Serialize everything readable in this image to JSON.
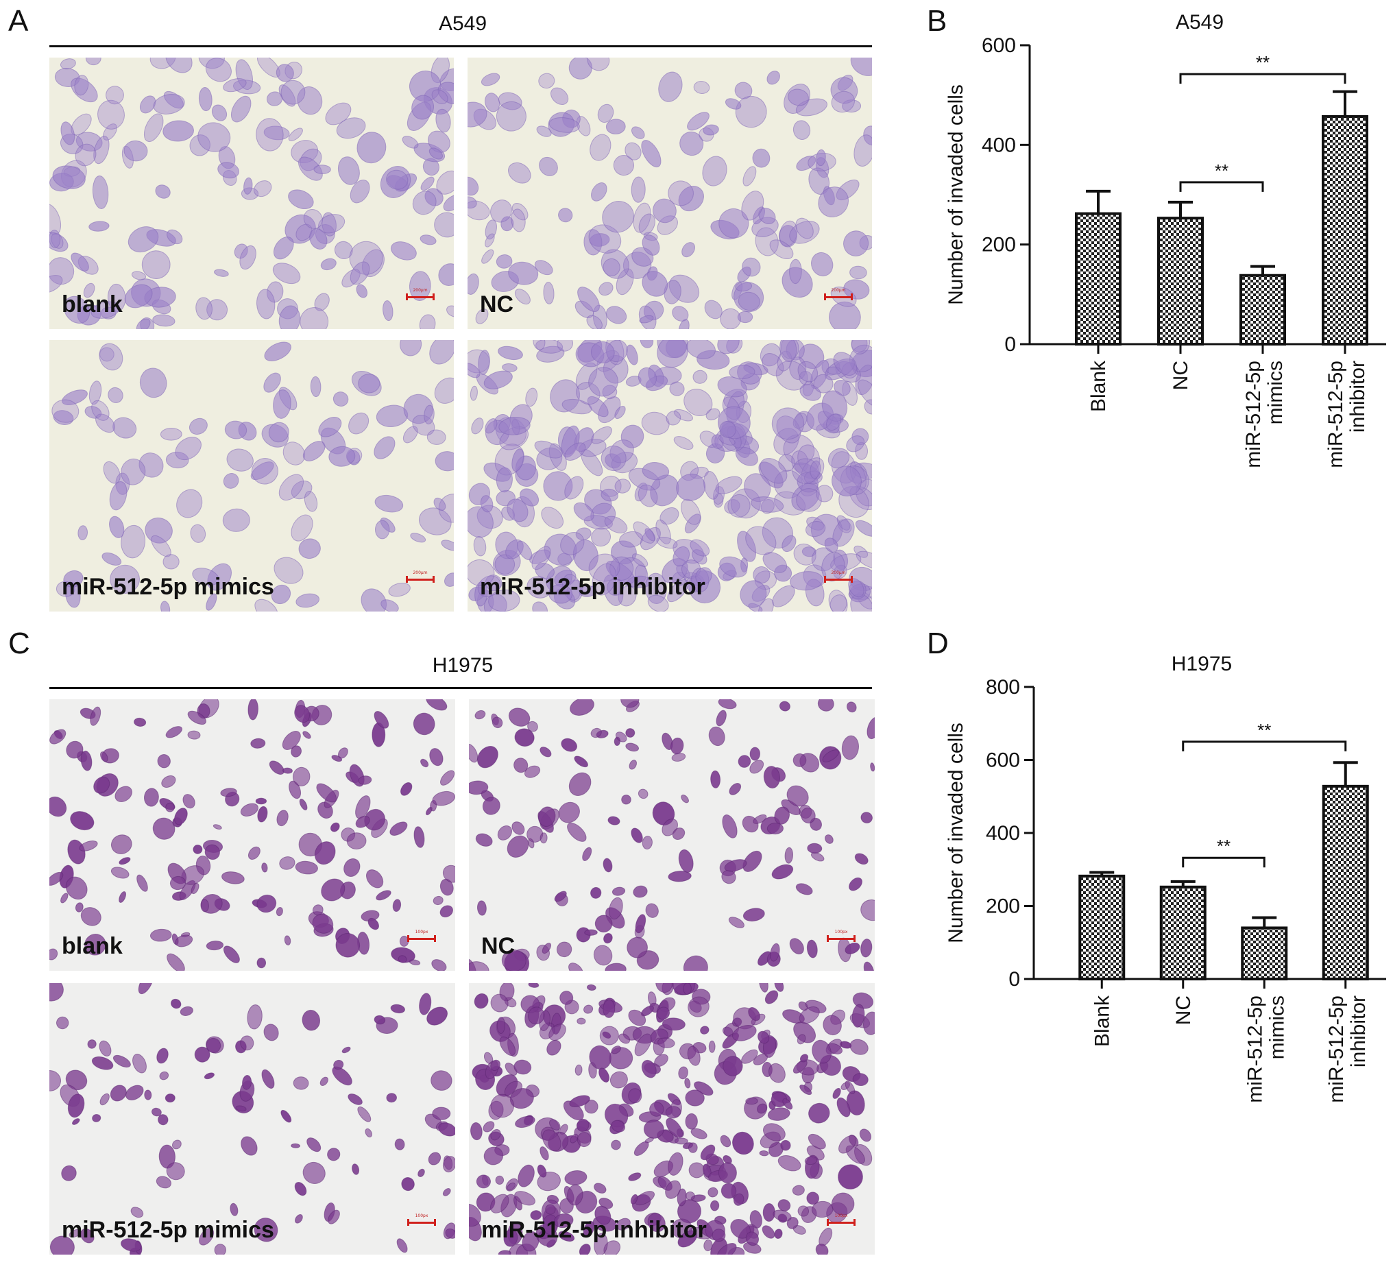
{
  "panels": {
    "A": {
      "letter": "A",
      "title": "A549",
      "images": [
        {
          "label": "blank",
          "scale": "200μm"
        },
        {
          "label": "NC",
          "scale": "200μm"
        },
        {
          "label": "miR-512-5p mimics",
          "scale": "200μm"
        },
        {
          "label": "miR-512-5p inhibitor",
          "scale": "200μm"
        }
      ],
      "stain_color": "#9a7fc8",
      "background_color": "#efeee0"
    },
    "B": {
      "letter": "B"
    },
    "C": {
      "letter": "C",
      "title": "H1975",
      "images": [
        {
          "label": "blank",
          "scale": "100px"
        },
        {
          "label": "NC",
          "scale": "100px"
        },
        {
          "label": "miR-512-5p mimics",
          "scale": "100px"
        },
        {
          "label": "miR-512-5p inhibitor",
          "scale": "100px"
        }
      ],
      "stain_color": "#7a3a8e",
      "background_color": "#efefee"
    },
    "D": {
      "letter": "D"
    }
  },
  "chart_data": [
    {
      "type": "bar",
      "title": "A549",
      "ylabel": "Number of invaded cells",
      "categories": [
        "Blank",
        "NC",
        "miR-512-5p mimics",
        "miR-512-5p inhibitor"
      ],
      "category_lines": [
        [
          "Blank"
        ],
        [
          "NC"
        ],
        [
          "miR-512-5p",
          "mimics"
        ],
        [
          "miR-512-5p",
          "inhibitor"
        ]
      ],
      "values": [
        262,
        253,
        138,
        457
      ],
      "errors": [
        45,
        32,
        18,
        50
      ],
      "ylim": [
        0,
        600
      ],
      "yticks": [
        0,
        200,
        400,
        600
      ],
      "bar_pattern": "checkered",
      "significance": [
        {
          "from": 1,
          "to": 2,
          "label": "**",
          "y": 325
        },
        {
          "from": 1,
          "to": 3,
          "label": "**",
          "y": 542
        }
      ]
    },
    {
      "type": "bar",
      "title": "H1975",
      "ylabel": "Number of invaded cells",
      "categories": [
        "Blank",
        "NC",
        "miR-512-5p mimics",
        "miR-512-5p inhibitor"
      ],
      "category_lines": [
        [
          "Blank"
        ],
        [
          "NC"
        ],
        [
          "miR-512-5p",
          "mimics"
        ],
        [
          "miR-512-5p",
          "inhibitor"
        ]
      ],
      "values": [
        282,
        252,
        140,
        528
      ],
      "errors": [
        10,
        15,
        28,
        65
      ],
      "ylim": [
        0,
        800
      ],
      "yticks": [
        0,
        200,
        400,
        600,
        800
      ],
      "bar_pattern": "checkered",
      "significance": [
        {
          "from": 1,
          "to": 2,
          "label": "**",
          "y": 332
        },
        {
          "from": 1,
          "to": 3,
          "label": "**",
          "y": 650
        }
      ]
    }
  ]
}
